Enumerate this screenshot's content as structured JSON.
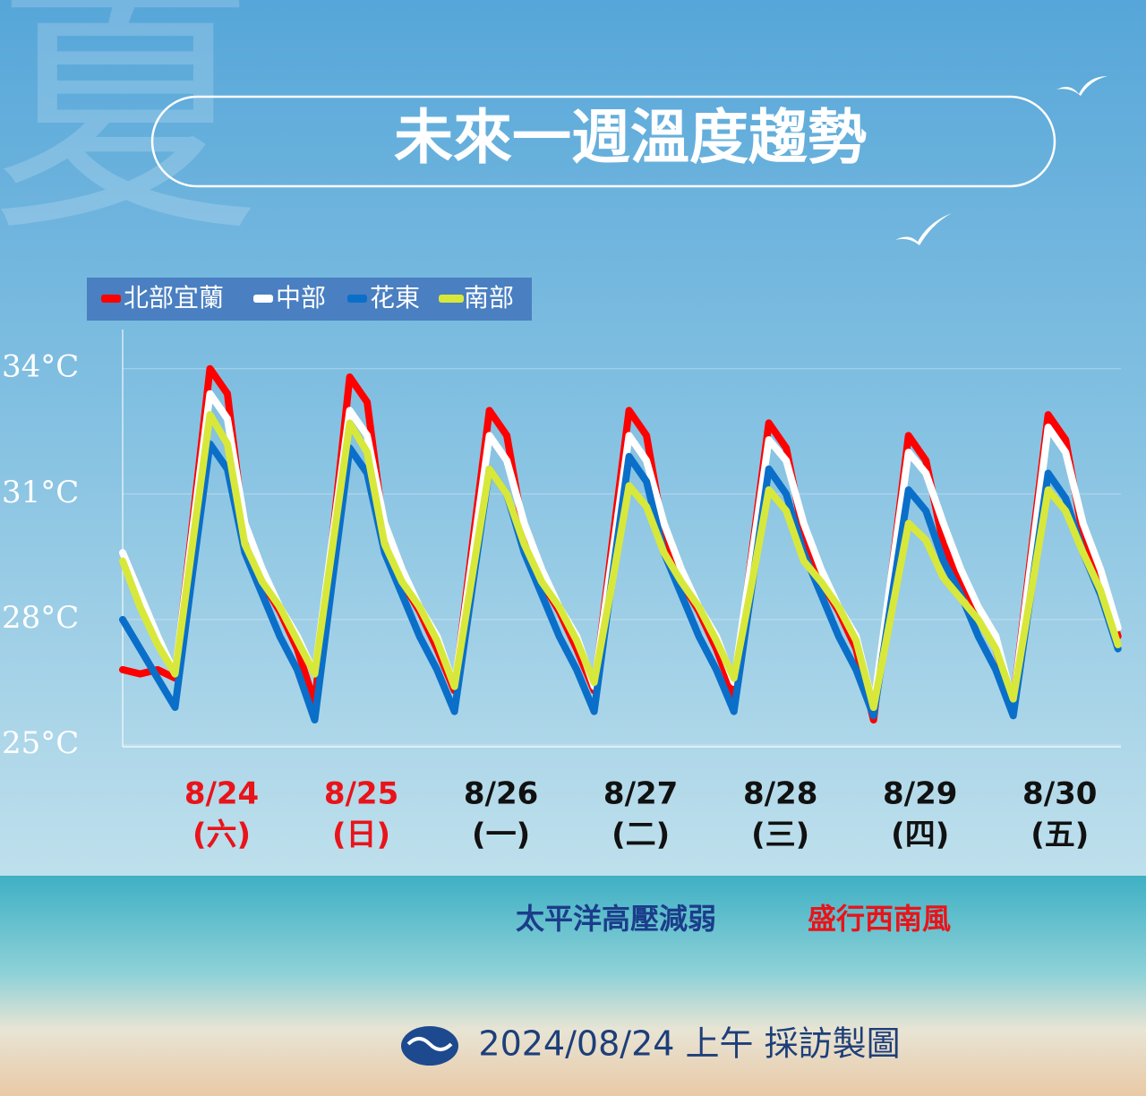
{
  "background_char": "夏",
  "chart_data": {
    "type": "line",
    "title": "未來一週溫度趨勢",
    "x": [
      0,
      3,
      6,
      9,
      12,
      15,
      18,
      21,
      24,
      27,
      30,
      33,
      36,
      39,
      42,
      45,
      48,
      51,
      54,
      57,
      60,
      63,
      66,
      69,
      72,
      75,
      78,
      81,
      84,
      87,
      90,
      93,
      96,
      99,
      102,
      105,
      108,
      111,
      114,
      117,
      120,
      123,
      126,
      129,
      132,
      135,
      138,
      141,
      144,
      147,
      150,
      153,
      156,
      159,
      162,
      165,
      168,
      171
    ],
    "xlim": [
      0,
      171.5
    ],
    "xticks": [
      {
        "value": 17,
        "label": "8/24"
      },
      {
        "value": 41,
        "label": "8/25"
      },
      {
        "value": 65,
        "label": "8/26"
      },
      {
        "value": 89,
        "label": "8/27"
      },
      {
        "value": 113,
        "label": "8/28"
      },
      {
        "value": 137,
        "label": "8/29"
      },
      {
        "value": 161,
        "label": "8/30"
      }
    ],
    "xtick_sublabels": [
      "(六)",
      "(日)",
      "(一)",
      "(二)",
      "(三)",
      "(四)",
      "(五)"
    ],
    "xtick_colors": [
      "#e8141a",
      "#e8141a",
      "#111111",
      "#111111",
      "#111111",
      "#111111",
      "#111111"
    ],
    "ylim": [
      25,
      35
    ],
    "yticks": [
      {
        "value": 25,
        "label": "25°C"
      },
      {
        "value": 28,
        "label": "28°C"
      },
      {
        "value": 31,
        "label": "31°C"
      },
      {
        "value": 34,
        "label": "34°C"
      }
    ],
    "grid": true,
    "series": [
      {
        "name": "北部宜蘭",
        "color": "#ff0000",
        "values": [
          26.8,
          26.7,
          26.8,
          26.6,
          30.3,
          34.0,
          33.4,
          30.0,
          28.9,
          28.2,
          27.3,
          26.0,
          29.9,
          33.8,
          33.2,
          30.0,
          28.9,
          28.2,
          27.3,
          26.3,
          29.7,
          33.0,
          32.4,
          30.0,
          28.9,
          28.2,
          27.3,
          26.3,
          29.7,
          33.0,
          32.4,
          30.0,
          28.9,
          28.2,
          27.3,
          26.2,
          29.5,
          32.7,
          32.1,
          30.0,
          28.9,
          28.2,
          27.3,
          25.6,
          29.0,
          32.4,
          31.8,
          29.8,
          28.9,
          28.2,
          27.3,
          26.0,
          29.5,
          32.9,
          32.3,
          30.0,
          28.9,
          27.6
        ]
      },
      {
        "name": "中部",
        "color": "#ffffff",
        "values": [
          29.6,
          28.6,
          27.6,
          26.7,
          30.1,
          33.4,
          32.8,
          30.3,
          29.2,
          28.3,
          27.6,
          26.7,
          29.9,
          33.0,
          32.4,
          30.3,
          29.2,
          28.3,
          27.6,
          26.4,
          29.4,
          32.4,
          31.8,
          30.3,
          29.2,
          28.3,
          27.6,
          26.4,
          29.4,
          32.4,
          31.8,
          30.3,
          29.2,
          28.3,
          27.6,
          26.5,
          29.4,
          32.3,
          31.8,
          30.3,
          29.2,
          28.3,
          27.6,
          25.9,
          29.0,
          32.0,
          31.5,
          30.3,
          29.2,
          28.3,
          27.6,
          26.0,
          29.3,
          32.6,
          32.0,
          30.3,
          29.2,
          27.8
        ]
      },
      {
        "name": "花東",
        "color": "#0a6fc9",
        "values": [
          28.0,
          27.3,
          26.6,
          25.9,
          29.1,
          32.2,
          31.6,
          29.6,
          28.6,
          27.6,
          26.8,
          25.6,
          28.9,
          32.1,
          31.5,
          29.6,
          28.6,
          27.6,
          26.8,
          25.8,
          28.7,
          31.6,
          31.0,
          29.6,
          28.6,
          27.6,
          26.8,
          25.8,
          28.9,
          31.9,
          31.3,
          29.6,
          28.6,
          27.6,
          26.8,
          25.8,
          28.7,
          31.6,
          31.0,
          29.6,
          28.6,
          27.6,
          26.8,
          25.7,
          28.4,
          31.1,
          30.6,
          29.4,
          28.6,
          27.6,
          26.8,
          25.7,
          28.6,
          31.5,
          30.9,
          29.6,
          28.6,
          27.3
        ]
      },
      {
        "name": "南部",
        "color": "#d8e83a",
        "values": [
          29.4,
          28.3,
          27.4,
          26.7,
          29.8,
          32.9,
          32.2,
          29.8,
          28.9,
          28.3,
          27.5,
          26.7,
          29.7,
          32.7,
          32.0,
          29.8,
          28.9,
          28.3,
          27.5,
          26.4,
          29.0,
          31.6,
          31.0,
          29.8,
          28.9,
          28.3,
          27.5,
          26.5,
          28.8,
          31.2,
          30.7,
          29.6,
          28.9,
          28.3,
          27.5,
          26.6,
          28.8,
          31.1,
          30.6,
          29.4,
          28.9,
          28.3,
          27.5,
          25.9,
          28.1,
          30.3,
          29.9,
          29.0,
          28.5,
          28.0,
          27.3,
          26.1,
          28.6,
          31.1,
          30.6,
          29.6,
          28.7,
          27.4
        ]
      }
    ]
  },
  "notes": {
    "left": "太平洋高壓減弱",
    "right": "盛行西南風"
  },
  "footer": "2024/08/24 上午 採訪製圖"
}
